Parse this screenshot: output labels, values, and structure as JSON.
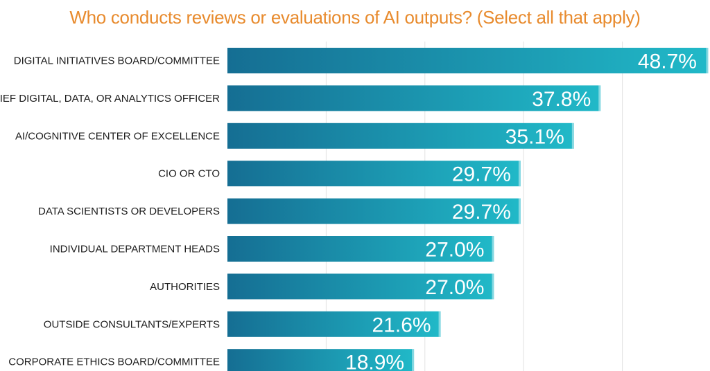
{
  "title": "Who conducts reviews or evaluations of AI outputs? (Select all that apply)",
  "chart_data": {
    "type": "bar",
    "orientation": "horizontal",
    "title": "Who conducts reviews or evaluations of AI outputs? (Select all that apply)",
    "categories": [
      "DIGITAL INITIATIVES BOARD/COMMITTEE",
      "IEF DIGITAL, DATA, OR ANALYTICS OFFICER",
      "AI/COGNITIVE CENTER OF EXCELLENCE",
      "CIO OR CTO",
      "DATA SCIENTISTS OR DEVELOPERS",
      "INDIVIDUAL DEPARTMENT HEADS",
      "AUTHORITIES",
      "OUTSIDE CONSULTANTS/EXPERTS",
      "CORPORATE ETHICS BOARD/COMMITTEE"
    ],
    "values": [
      48.7,
      37.8,
      35.1,
      29.7,
      29.7,
      27.0,
      27.0,
      21.6,
      18.9
    ],
    "value_labels": [
      "48.7%",
      "37.8%",
      "35.1%",
      "29.7%",
      "29.7%",
      "27.0%",
      "27.0%",
      "21.6%",
      "18.9%"
    ],
    "xlim": [
      0,
      50
    ],
    "grid": true,
    "colors": {
      "bar_start": "#156e93",
      "bar_end": "#21b9c8",
      "grid": "#e2e2e2",
      "title": "#e88b2e"
    }
  }
}
